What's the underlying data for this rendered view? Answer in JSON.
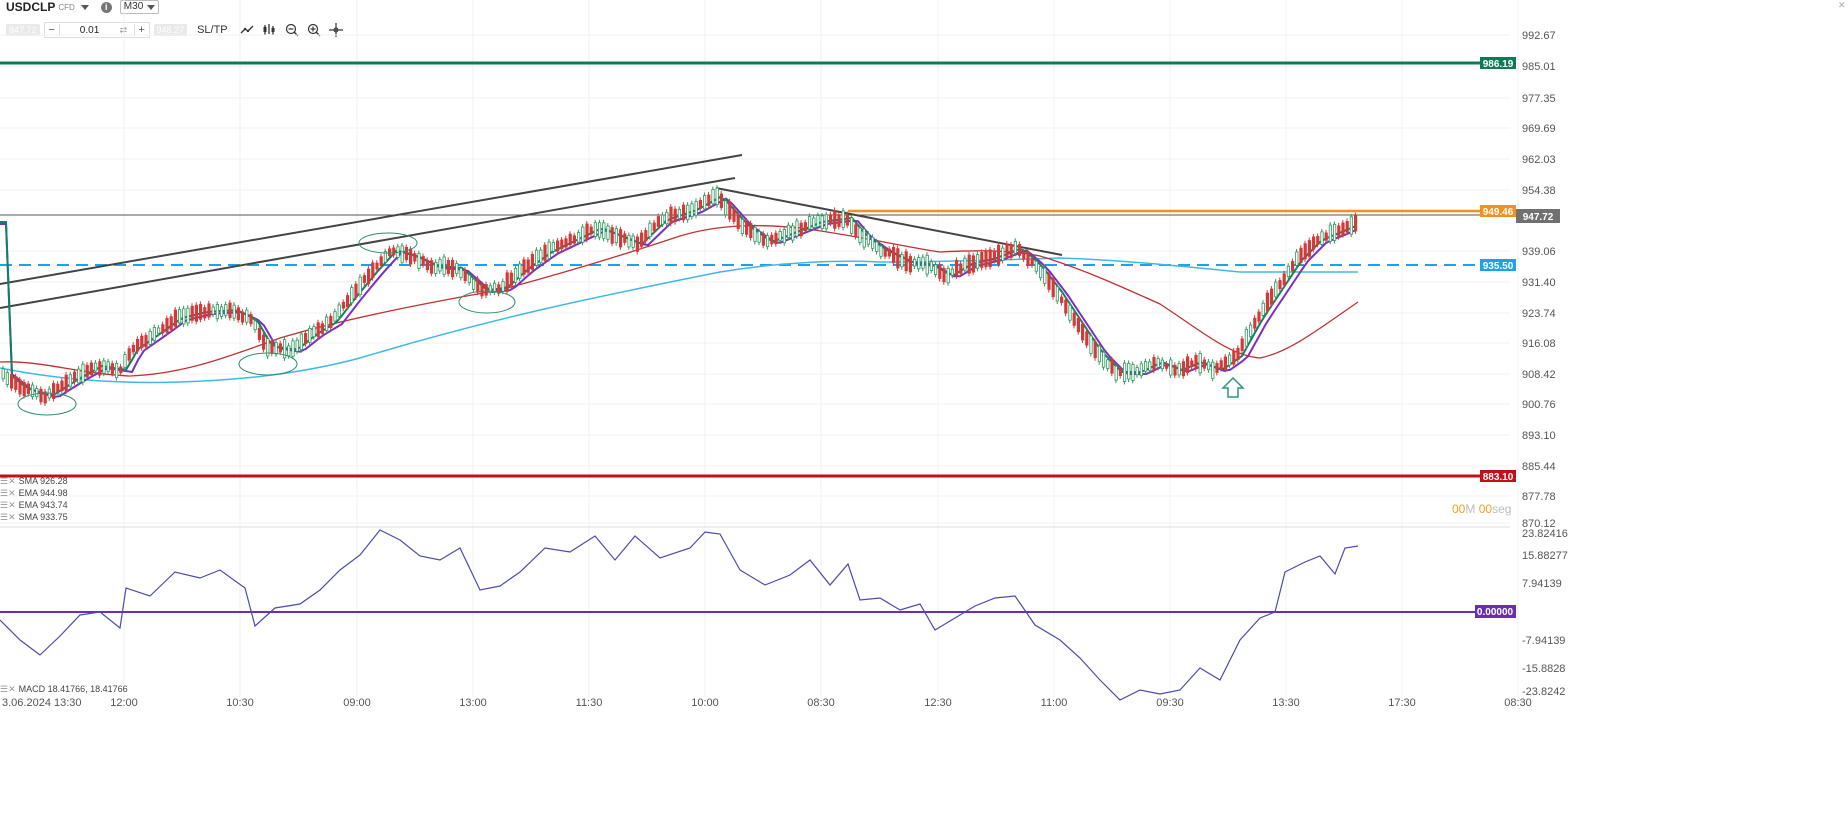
{
  "header": {
    "symbol": "USDCLP",
    "symbol_type": "CFD",
    "timeframe": "M30"
  },
  "trade": {
    "sell_price": "947.72",
    "quantity": "0.01",
    "buy_price": "948.27",
    "sltp_label": "SL/TP",
    "minus": "−",
    "plus": "+"
  },
  "price_axis": [
    "992.67",
    "985.01",
    "977.35",
    "969.69",
    "962.03",
    "954.38",
    "947.72",
    "939.06",
    "931.40",
    "923.74",
    "916.08",
    "908.42",
    "900.76",
    "893.10",
    "885.44",
    "877.78",
    "870.12"
  ],
  "macd_axis": [
    "23.82416",
    "15.88277",
    "7.94139",
    "0.00000",
    "-7.94139",
    "-15.8828",
    "-23.8242"
  ],
  "time_axis": [
    "3.06.2024 13:30",
    "12:00",
    "10:30",
    "09:00",
    "13:00",
    "11:30",
    "10:00",
    "08:30",
    "12:30",
    "11:00",
    "09:30",
    "13:30",
    "17:30",
    "08:30"
  ],
  "tags": {
    "green_line": "986.19",
    "orange_line": "949.46",
    "current_price": "947.72",
    "blue_line": "935.50",
    "red_line": "883.10",
    "macd_zero": "0.00000"
  },
  "legend": {
    "sma1": "SMA 926.28",
    "ema1": "EMA 944.98",
    "ema2": "EMA 943.74",
    "sma2": "SMA 933.75",
    "macd": "MACD 18.41766, 18.41766"
  },
  "timer": {
    "minutes": "00",
    "min_unit": "M",
    "seconds": "00",
    "sec_unit": "seg"
  },
  "colors": {
    "green_line": "#0f7a55",
    "red_line": "#c0101a",
    "orange_line": "#f5901e",
    "blue_dashed": "#1aa3e8",
    "sma_blue": "#3fb8e8",
    "sma_red": "#c23030",
    "ema_purple": "#7a2fc0",
    "ema_green": "#108060",
    "macd": "#4a4ab0",
    "macd_zero": "#6a2fb0"
  }
}
